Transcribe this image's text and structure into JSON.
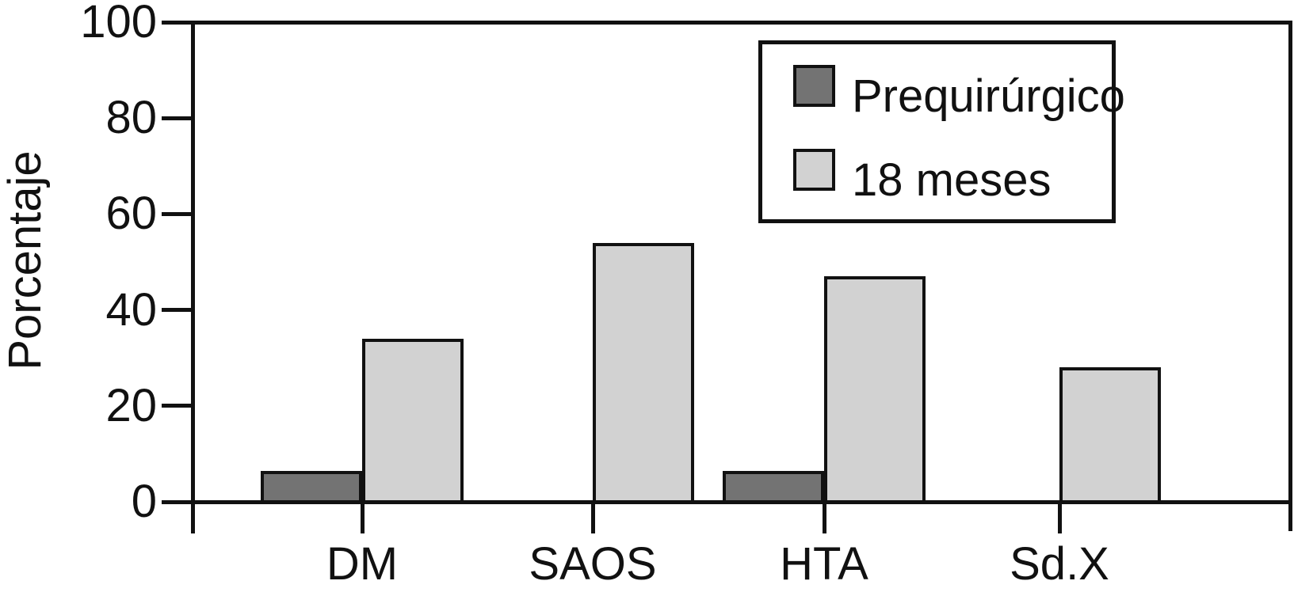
{
  "figure": {
    "background": "#ffffff",
    "line_color": "#111111"
  },
  "chart_data": {
    "type": "bar",
    "title": "",
    "ylabel": "Porcentaje",
    "xlabel": "",
    "categories": [
      "DM",
      "SAOS",
      "HTA",
      "Sd.X"
    ],
    "series": [
      {
        "name": "Prequirúrgico",
        "color": "#737373",
        "values": [
          6.4,
          0,
          6.4,
          0
        ]
      },
      {
        "name": "18 meses",
        "color": "#d2d2d2",
        "values": [
          34,
          54,
          47,
          28
        ]
      }
    ],
    "ylim": [
      0,
      100
    ],
    "yticks": [
      0,
      20,
      40,
      60,
      80,
      100
    ],
    "grid": false,
    "legend_position": "top-right",
    "bar_outline_color": "#111111"
  }
}
